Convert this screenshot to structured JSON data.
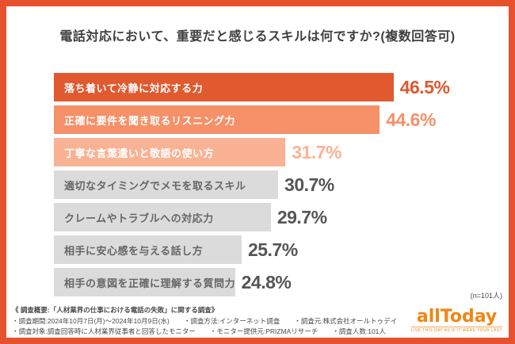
{
  "frame": {
    "border_color": "#E8512D",
    "background": "#FFFFFF"
  },
  "title": "電話対応において、重要だと感じるスキルは何ですか?(複数回答可)",
  "chart_data": {
    "type": "bar",
    "orientation": "horizontal",
    "title": "電話対応において、重要だと感じるスキルは何ですか?(複数回答可)",
    "unit": "%",
    "xlim": [
      0,
      50
    ],
    "grid": false,
    "legend": false,
    "categories": [
      "落ち着いて冷静に対応する力",
      "正確に要件を聞き取るリスニング力",
      "丁寧な言葉遣いと敬語の使い方",
      "適切なタイミングでメモを取るスキル",
      "クレームやトラブルへの対応力",
      "相手に安心感を与える話し方",
      "相手の意図を正確に理解する質問力"
    ],
    "values": [
      46.5,
      44.6,
      31.7,
      30.7,
      29.7,
      25.7,
      24.8
    ],
    "value_labels": [
      "46.5%",
      "44.6%",
      "31.7%",
      "30.7%",
      "29.7%",
      "25.7%",
      "24.8%"
    ],
    "bar_colors": [
      "#E0592F",
      "#F59068",
      "#F9B294",
      "#DBDBDB",
      "#DBDBDB",
      "#DBDBDB",
      "#DBDBDB"
    ],
    "value_label_colors": [
      "#E0592F",
      "#F59068",
      "#F9B294",
      "#555555",
      "#555555",
      "#555555",
      "#555555"
    ],
    "label_text_colors": [
      "#FFFFFF",
      "#FFFFFF",
      "#FFFFFF",
      "#666666",
      "#666666",
      "#666666",
      "#666666"
    ],
    "sample_note": "(n=101人)"
  },
  "footer": {
    "overview": "《 調査概要:「人材業界の仕事における電話の失敗」に関する調査》",
    "lines": [
      [
        "・調査期間:2024年10月7日(月)〜2024年10月9日(水)",
        "・調査方法:インターネット調査",
        "・調査元:株式会社オールトゥデイ"
      ],
      [
        "・調査対象:調査回答時に人材業界従事者と回答したモニター",
        "・モニター提供元:PRIZMAリサーチ",
        "・調査人数:101人"
      ]
    ],
    "logo": {
      "text": "allToday",
      "tagline": "LIVE THIS DAY AS IF IT WERE YOUR LAST",
      "color": "#F08614"
    }
  }
}
